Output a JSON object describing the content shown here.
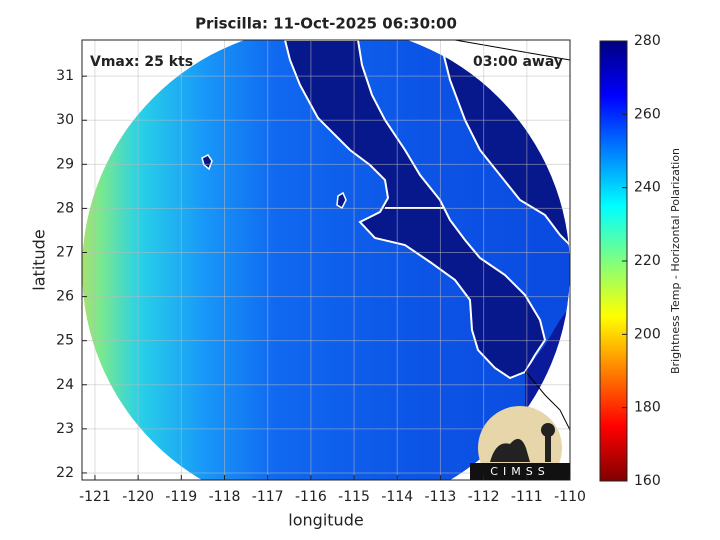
{
  "chart_data": {
    "type": "map",
    "title": "Priscilla: 11-Oct-2025 06:30:00",
    "annotations": [
      "Vmax: 25 kts",
      "03:00 away"
    ],
    "xlabel": "longitude",
    "ylabel": "latitude",
    "xlim": [
      -121.3,
      -110
    ],
    "ylim": [
      21.84,
      31.82
    ],
    "xticks": [
      -121,
      -120,
      -119,
      -118,
      -117,
      -116,
      -115,
      -114,
      -113,
      -112,
      -111,
      -110
    ],
    "yticks": [
      22,
      23,
      24,
      25,
      26,
      27,
      28,
      29,
      30,
      31
    ],
    "grid": true,
    "colorbar": {
      "label": "Brightness Temp - Horizontal Polarization",
      "clim": [
        160,
        280
      ],
      "ticks": [
        160,
        180,
        200,
        220,
        240,
        260,
        280
      ],
      "colormap": "jet"
    },
    "logo": "CIMSS"
  }
}
